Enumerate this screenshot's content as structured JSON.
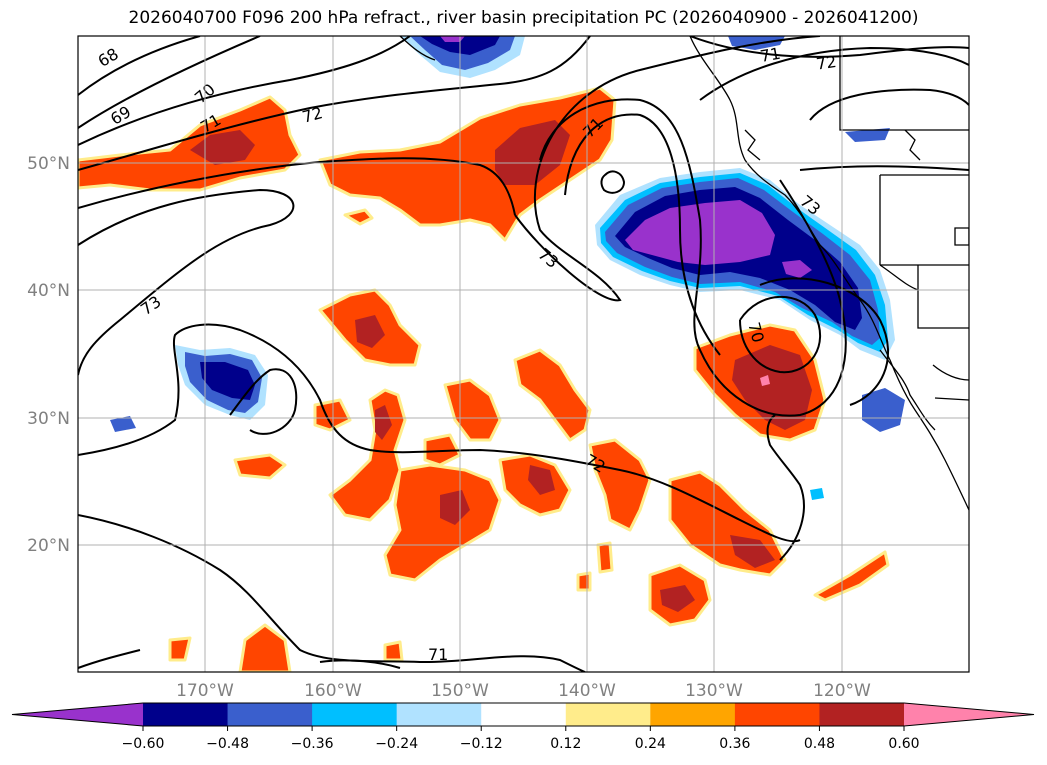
{
  "title": "2026040700 F096 200 hPa refract., river basin precipitation PC (2026040900 - 2026041200)",
  "map": {
    "projection": "PlateCarree",
    "extent_lon": [
      -180,
      -110
    ],
    "extent_lat": [
      10,
      60
    ],
    "lat_labels": [
      "50°N",
      "40°N",
      "30°N",
      "20°N"
    ],
    "lon_labels": [
      "170°W",
      "160°W",
      "150°W",
      "140°W",
      "130°W",
      "120°W"
    ],
    "gridlines": true,
    "contour_labels": [
      "68",
      "69",
      "70",
      "71",
      "72",
      "71",
      "72",
      "71",
      "73",
      "73",
      "70",
      "72",
      "71",
      "73"
    ]
  },
  "colorbar": {
    "orientation": "horizontal",
    "extend": "both",
    "tick_labels": [
      "−0.60",
      "−0.48",
      "−0.36",
      "−0.24",
      "−0.12",
      "0.12",
      "0.24",
      "0.36",
      "0.48",
      "0.60"
    ],
    "colors": [
      "#9932cc",
      "#00008b",
      "#3a5fcd",
      "#00bfff",
      "#b0e2ff",
      "#ffffff",
      "#ffec8b",
      "#ffa500",
      "#ff4500",
      "#b22222",
      "#ff82ab"
    ]
  }
}
